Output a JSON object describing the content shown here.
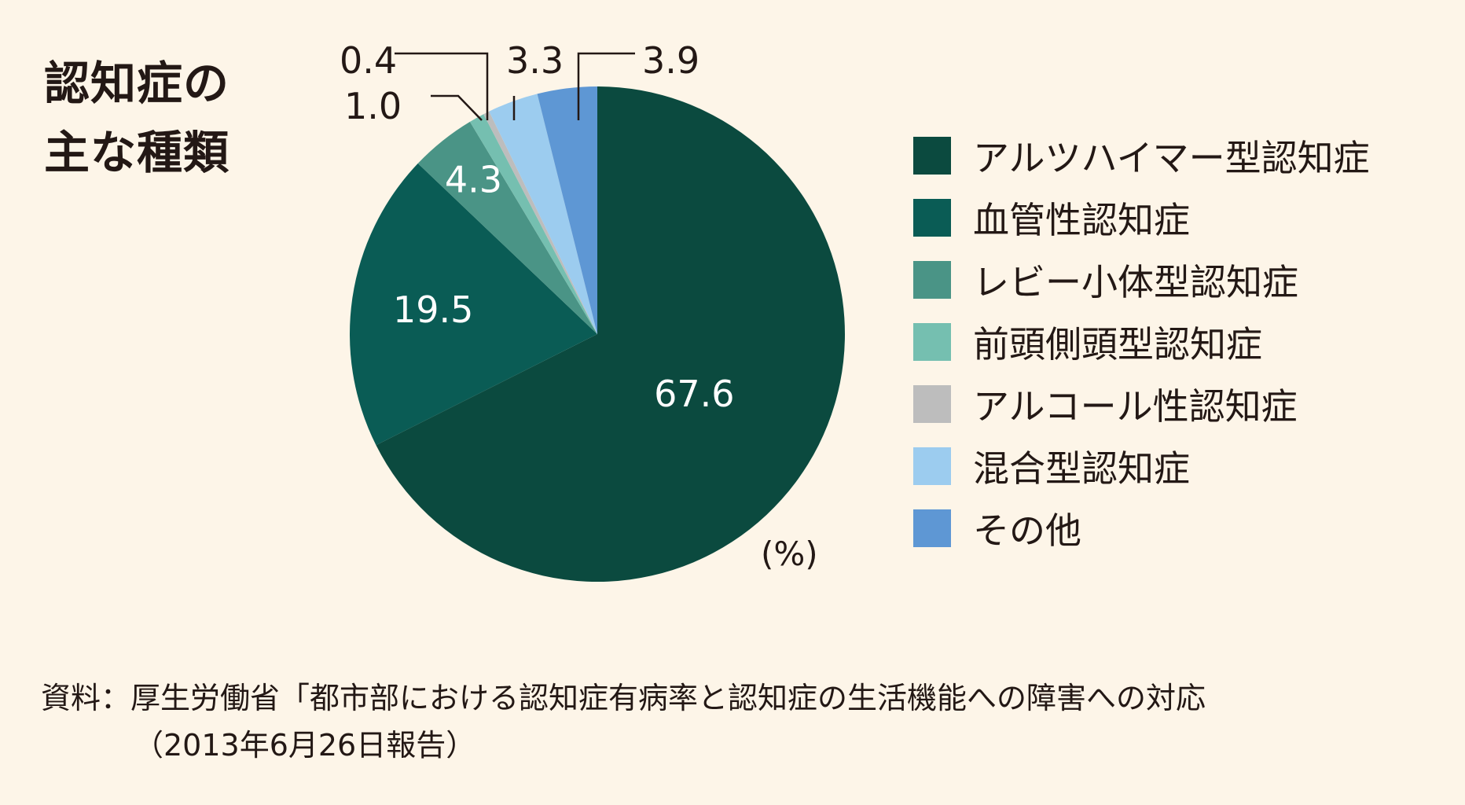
{
  "title": {
    "line1": "認知症の",
    "line2": "主な種類"
  },
  "unit": "(%)",
  "source": {
    "line1": "資料：厚生労働省「都市部における認知症有病率と認知症の生活機能への障害への対応",
    "line2": "（2013年6月26日報告）"
  },
  "chart_data": {
    "type": "pie",
    "title": "認知症の主な種類",
    "unit": "%",
    "start": "12 o'clock",
    "direction": "clockwise",
    "legend_position": "right",
    "slices": [
      {
        "name": "アルツハイマー型認知症",
        "label": "67.6",
        "value": 67.6,
        "color": "#0b4a3f"
      },
      {
        "name": "血管性認知症",
        "label": "19.5",
        "value": 19.5,
        "color": "#0a5c55"
      },
      {
        "name": "レビー小体型認知症",
        "label": "4.3",
        "value": 4.3,
        "color": "#4a9486"
      },
      {
        "name": "前頭側頭型認知症",
        "label": "1.0",
        "value": 1.0,
        "color": "#75bfb0"
      },
      {
        "name": "アルコール性認知症",
        "label": "0.4",
        "value": 0.4,
        "color": "#bdbdbd"
      },
      {
        "name": "混合型認知症",
        "label": "3.3",
        "value": 3.3,
        "color": "#9cccef"
      },
      {
        "name": "その他",
        "label": "3.9",
        "value": 3.9,
        "color": "#5e97d4"
      }
    ]
  }
}
